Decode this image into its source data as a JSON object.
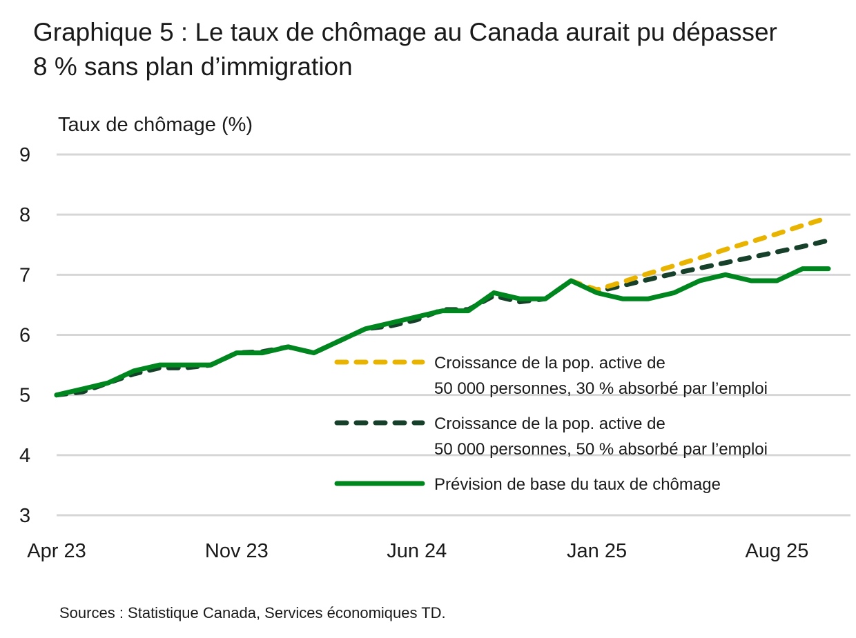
{
  "title": "Graphique 5 : Le taux de chômage au Canada aurait pu dépasser 8 % sans plan d’immigration",
  "source": "Sources : Statistique Canada, Services économiques TD.",
  "chart_data": {
    "type": "line",
    "title": "Graphique 5 : Le taux de chômage au Canada aurait pu dépasser 8 % sans plan d’immigration",
    "ylabel": "Taux de chômage (%)",
    "xlabel": "",
    "ylim": [
      3,
      9
    ],
    "yticks": [
      "3",
      "4",
      "5",
      "6",
      "7",
      "8",
      "9"
    ],
    "xticks": [
      "Apr 23",
      "Nov 23",
      "Jun 24",
      "Jan 25",
      "Aug 25"
    ],
    "x": [
      "Apr 23",
      "May 23",
      "Jun 23",
      "Jul 23",
      "Aug 23",
      "Sep 23",
      "Oct 23",
      "Nov 23",
      "Dec 23",
      "Jan 24",
      "Feb 24",
      "Mar 24",
      "Apr 24",
      "May 24",
      "Jun 24",
      "Jul 24",
      "Aug 24",
      "Sep 24",
      "Oct 24",
      "Nov 24",
      "Dec 24",
      "Jan 25",
      "Feb 25",
      "Mar 25",
      "Apr 25",
      "May 25",
      "Jun 25",
      "Jul 25",
      "Aug 25",
      "Sep 25",
      "Oct 25"
    ],
    "grid": true,
    "legend_position": "center-right",
    "series": [
      {
        "name": "Croissance de la pop. active de 50 000 personnes, 30 % absorbé par l’emploi",
        "label_lines": [
          "Croissance de la pop. active de",
          "50 000 personnes, 30 % absorbé par l’emploi"
        ],
        "color": "#E8B400",
        "style": "dashed",
        "values": [
          null,
          null,
          null,
          null,
          null,
          null,
          null,
          null,
          null,
          null,
          null,
          null,
          null,
          null,
          null,
          null,
          null,
          null,
          null,
          null,
          6.9,
          6.75,
          6.88,
          7.02,
          7.15,
          7.28,
          7.42,
          7.55,
          7.68,
          7.82,
          7.95
        ]
      },
      {
        "name": "Croissance de la pop. active de 50 000 personnes, 50 % absorbé par l’emploi",
        "label_lines": [
          "Croissance de la pop. active de",
          "50 000 personnes, 50 % absorbé par l’emploi"
        ],
        "color": "#17402A",
        "style": "dashed",
        "values": [
          5.0,
          5.05,
          5.2,
          5.35,
          5.45,
          5.45,
          5.5,
          5.7,
          5.72,
          5.8,
          5.7,
          5.9,
          6.1,
          6.15,
          6.25,
          6.42,
          6.42,
          6.65,
          6.55,
          6.6,
          6.9,
          6.72,
          6.82,
          6.92,
          7.02,
          7.11,
          7.2,
          7.29,
          7.38,
          7.47,
          7.57
        ]
      },
      {
        "name": "Prévision de base du taux de chômage",
        "label_lines": [
          "Prévision de base du taux de chômage"
        ],
        "color": "#00861E",
        "style": "solid",
        "values": [
          5.0,
          5.1,
          5.2,
          5.4,
          5.5,
          5.5,
          5.5,
          5.7,
          5.7,
          5.8,
          5.7,
          5.9,
          6.1,
          6.2,
          6.3,
          6.4,
          6.4,
          6.7,
          6.6,
          6.6,
          6.9,
          6.7,
          6.6,
          6.6,
          6.7,
          6.9,
          7.0,
          6.9,
          6.9,
          7.1,
          7.1
        ]
      }
    ]
  }
}
